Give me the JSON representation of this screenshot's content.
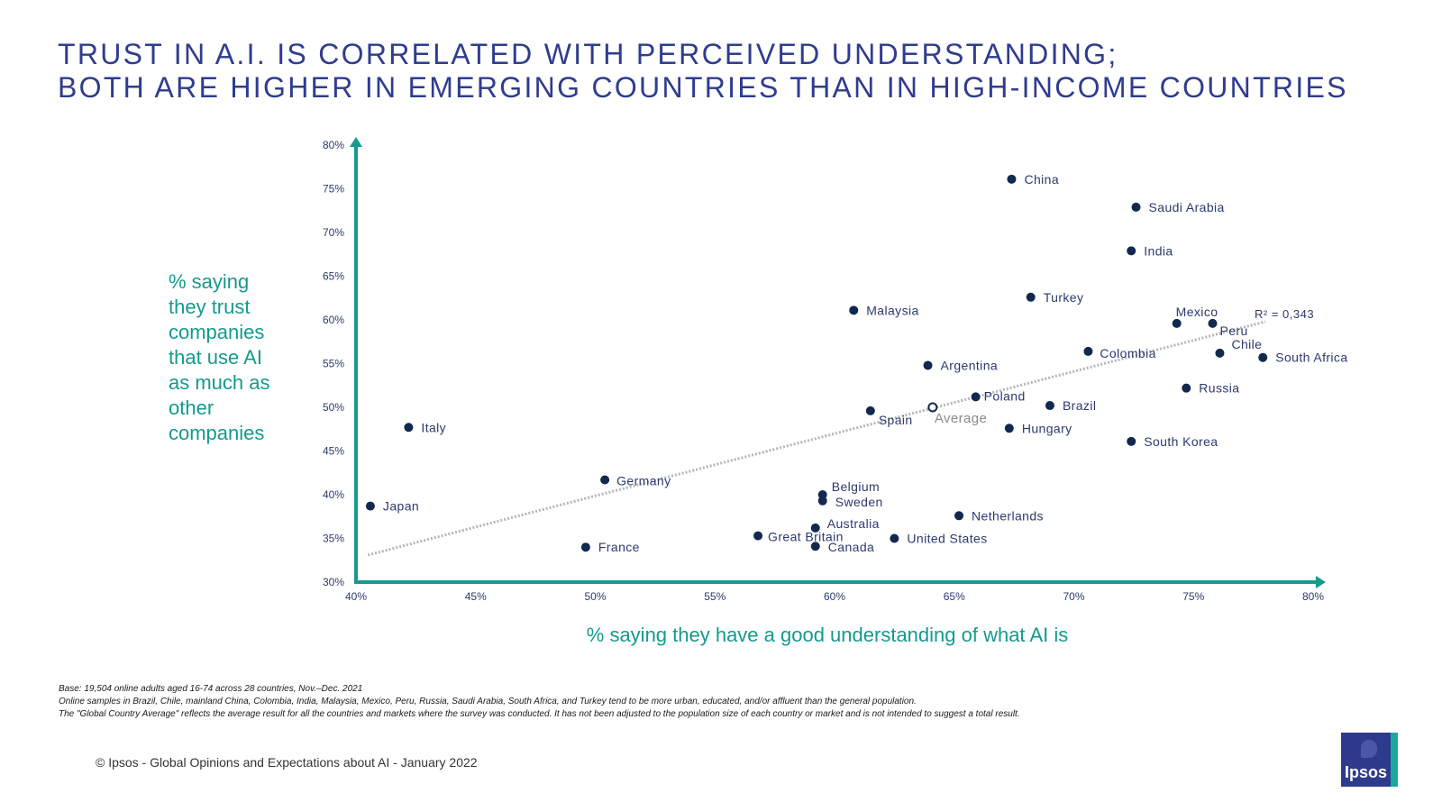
{
  "title": {
    "line1": "TRUST IN A.I. IS CORRELATED WITH PERCEIVED UNDERSTANDING;",
    "line2": "BOTH ARE HIGHER IN EMERGING COUNTRIES THAN IN HIGH-INCOME COUNTRIES"
  },
  "chart_data": {
    "type": "scatter",
    "xlabel": "% saying they have a good understanding of what AI is",
    "ylabel": "% saying they trust companies that use AI as much as other companies",
    "xlim": [
      40,
      80
    ],
    "ylim": [
      30,
      80
    ],
    "x_ticks": [
      40,
      45,
      50,
      55,
      60,
      65,
      70,
      75,
      80
    ],
    "y_ticks": [
      30,
      35,
      40,
      45,
      50,
      55,
      60,
      65,
      70,
      75,
      80
    ],
    "x_tick_labels": [
      "40%",
      "45%",
      "50%",
      "55%",
      "60%",
      "65%",
      "70%",
      "75%",
      "80%"
    ],
    "y_tick_labels": [
      "30%",
      "35%",
      "40%",
      "45%",
      "50%",
      "55%",
      "60%",
      "65%",
      "70%",
      "75%",
      "80%"
    ],
    "grid": false,
    "trendline": {
      "from": [
        40.5,
        33.1
      ],
      "to": [
        78.0,
        59.8
      ],
      "label": "R² = 0,343"
    },
    "points": [
      {
        "label": "China",
        "x": 67.4,
        "y": 76.1
      },
      {
        "label": "Saudi Arabia",
        "x": 72.6,
        "y": 72.9
      },
      {
        "label": "India",
        "x": 72.4,
        "y": 67.9
      },
      {
        "label": "Turkey",
        "x": 68.2,
        "y": 62.6
      },
      {
        "label": "Malaysia",
        "x": 60.8,
        "y": 61.1
      },
      {
        "label": "Mexico",
        "x": 74.3,
        "y": 59.6
      },
      {
        "label": "Peru",
        "x": 75.8,
        "y": 59.6
      },
      {
        "label": "Colombia",
        "x": 70.6,
        "y": 56.4
      },
      {
        "label": "Chile",
        "x": 76.1,
        "y": 56.2
      },
      {
        "label": "South Africa",
        "x": 77.9,
        "y": 55.7
      },
      {
        "label": "Argentina",
        "x": 63.9,
        "y": 54.8
      },
      {
        "label": "Russia",
        "x": 74.7,
        "y": 52.2
      },
      {
        "label": "Poland",
        "x": 65.9,
        "y": 51.2
      },
      {
        "label": "Brazil",
        "x": 69.0,
        "y": 50.2
      },
      {
        "label": "Spain",
        "x": 61.5,
        "y": 49.6
      },
      {
        "label": "Average",
        "x": 64.1,
        "y": 50.0,
        "hollow": true
      },
      {
        "label": "Italy",
        "x": 42.2,
        "y": 47.7
      },
      {
        "label": "Hungary",
        "x": 67.3,
        "y": 47.6
      },
      {
        "label": "South Korea",
        "x": 72.4,
        "y": 46.1
      },
      {
        "label": "Germany",
        "x": 50.4,
        "y": 41.7
      },
      {
        "label": "Belgium",
        "x": 59.5,
        "y": 40.0
      },
      {
        "label": "Sweden",
        "x": 59.5,
        "y": 39.3
      },
      {
        "label": "Japan",
        "x": 40.6,
        "y": 38.7
      },
      {
        "label": "Netherlands",
        "x": 65.2,
        "y": 37.6
      },
      {
        "label": "Australia",
        "x": 59.2,
        "y": 36.2
      },
      {
        "label": "Great Britain",
        "x": 56.8,
        "y": 35.3
      },
      {
        "label": "United States",
        "x": 62.5,
        "y": 35.0
      },
      {
        "label": "Canada",
        "x": 59.2,
        "y": 34.1
      },
      {
        "label": "France",
        "x": 49.6,
        "y": 34.0
      }
    ]
  },
  "footnotes": [
    "Base: 19,504 online adults aged 16-74 across 28 countries, Nov.–Dec. 2021",
    "Online samples in Brazil, Chile, mainland China, Colombia, India, Malaysia, Mexico, Peru, Russia, Saudi Arabia, South Africa, and Turkey tend to be more urban, educated, and/or affluent than the general population.",
    "The \"Global Country Average\" reflects the average result for all the countries and markets where the survey was conducted. It has not been adjusted to the population size of each country or market and is not intended to suggest a total result."
  ],
  "copyright": "© Ipsos - Global Opinions and Expectations about AI - January 2022",
  "logo": {
    "text": "Ipsos"
  },
  "colors": {
    "title": "#2f3c8f",
    "axis": "#149a8e",
    "point": "#12284e",
    "trendline": "#b5b5b5",
    "label": "#2c3a70",
    "average_label": "#8a8a8a",
    "logo_bg": "#2e3a8c"
  }
}
